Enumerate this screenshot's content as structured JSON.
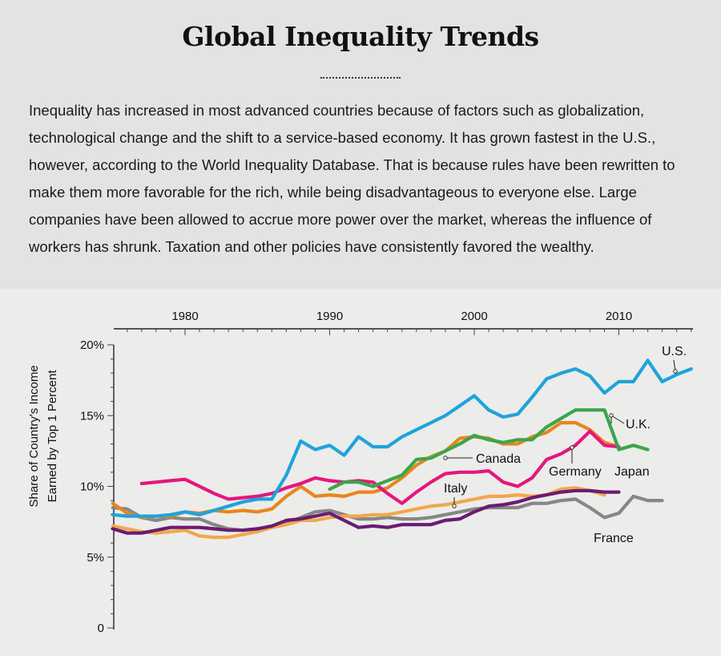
{
  "title": "Global Inequality Trends",
  "intro": "Inequality has increased in most advanced countries because of factors such as globalization, technological change and the shift to a service-based economy. It has grown fastest in the U.S., however, according to the World Inequality Database. That is because rules have been rewritten to make them more favorable for the rich, while being disadvantageous to everyone else. Large companies have been allowed to accrue more power over the market, whereas the influence of workers has shrunk. Taxation and other policies have consistently favored the wealthy.",
  "chart_data": {
    "type": "line",
    "title": "",
    "xlabel": "",
    "ylabel": "Share of Country's Income Earned by Top 1 Percent",
    "xlim": [
      1975,
      2016
    ],
    "ylim": [
      0,
      20
    ],
    "x_ticks": [
      1980,
      1990,
      2000,
      2010
    ],
    "y_ticks": [
      0,
      5,
      10,
      15,
      20
    ],
    "y_tick_labels": [
      "0",
      "5%",
      "10%",
      "15%",
      "20%"
    ],
    "x_axis_position": "top",
    "grid": false,
    "series": [
      {
        "name": "U.S.",
        "color": "#1fa3dc",
        "x": [
          1975,
          1976,
          1977,
          1978,
          1979,
          1980,
          1981,
          1982,
          1983,
          1984,
          1985,
          1986,
          1987,
          1988,
          1989,
          1990,
          1991,
          1992,
          1993,
          1994,
          1995,
          1996,
          1997,
          1998,
          1999,
          2000,
          2001,
          2002,
          2003,
          2004,
          2005,
          2006,
          2007,
          2008,
          2009,
          2010,
          2011,
          2012,
          2013,
          2014,
          2015
        ],
        "values": [
          8.0,
          7.9,
          7.9,
          7.9,
          8.0,
          8.2,
          8.0,
          8.3,
          8.6,
          8.9,
          9.1,
          9.1,
          10.8,
          13.2,
          12.6,
          12.9,
          12.2,
          13.5,
          12.8,
          12.8,
          13.5,
          14.0,
          14.5,
          15.0,
          15.7,
          16.4,
          15.4,
          14.9,
          15.1,
          16.3,
          17.6,
          18.0,
          18.3,
          17.8,
          16.6,
          17.4,
          17.4,
          18.9,
          17.4,
          17.9,
          18.3
        ],
        "label": "U.S."
      },
      {
        "name": "U.K.",
        "color": "#3aa54b",
        "x": [
          1990,
          1991,
          1992,
          1993,
          1994,
          1995,
          1996,
          1997,
          1998,
          1999,
          2000,
          2001,
          2002,
          2003,
          2004,
          2005,
          2006,
          2007,
          2008,
          2009,
          2010,
          2011,
          2012
        ],
        "values": [
          9.8,
          10.3,
          10.3,
          10.0,
          10.4,
          10.8,
          11.9,
          12.0,
          12.5,
          13.0,
          13.6,
          13.3,
          13.1,
          13.3,
          13.3,
          14.2,
          14.8,
          15.4,
          15.4,
          15.4,
          12.6,
          12.9,
          12.6
        ],
        "label": "U.K."
      },
      {
        "name": "Canada",
        "color": "#e8861e",
        "x": [
          1975,
          1976,
          1977,
          1978,
          1979,
          1980,
          1981,
          1982,
          1983,
          1984,
          1985,
          1986,
          1987,
          1988,
          1989,
          1990,
          1991,
          1992,
          1993,
          1994,
          1995,
          1996,
          1997,
          1998,
          1999,
          2000,
          2001,
          2002,
          2003,
          2004,
          2005,
          2006,
          2007,
          2008,
          2009,
          2010
        ],
        "values": [
          8.8,
          8.1,
          7.8,
          7.9,
          7.9,
          8.2,
          8.1,
          8.3,
          8.2,
          8.3,
          8.2,
          8.4,
          9.3,
          10.0,
          9.3,
          9.4,
          9.3,
          9.6,
          9.6,
          9.9,
          10.6,
          11.5,
          12.1,
          12.5,
          13.4,
          13.5,
          13.4,
          13.0,
          13.0,
          13.5,
          13.8,
          14.5,
          14.5,
          14.0,
          13.1,
          12.8
        ],
        "label": "Canada"
      },
      {
        "name": "Germany",
        "color": "#e5177e",
        "x": [
          1977,
          1978,
          1979,
          1980,
          1981,
          1982,
          1983,
          1984,
          1985,
          1986,
          1987,
          1988,
          1989,
          1990,
          1991,
          1992,
          1993,
          1994,
          1995,
          1996,
          1997,
          1998,
          1999,
          2000,
          2001,
          2002,
          2003,
          2004,
          2005,
          2006,
          2007,
          2008,
          2009,
          2010
        ],
        "values": [
          10.2,
          10.3,
          10.4,
          10.5,
          10.0,
          9.5,
          9.1,
          9.2,
          9.3,
          9.5,
          9.9,
          10.2,
          10.6,
          10.4,
          10.3,
          10.4,
          10.3,
          9.5,
          8.8,
          9.6,
          10.3,
          10.9,
          11.0,
          11.0,
          11.1,
          10.3,
          10.0,
          10.6,
          11.9,
          12.3,
          12.9,
          13.9,
          12.9,
          12.8
        ],
        "label": "Germany"
      },
      {
        "name": "Italy",
        "color": "#f1a84c",
        "x": [
          1975,
          1976,
          1977,
          1978,
          1979,
          1980,
          1981,
          1982,
          1983,
          1984,
          1985,
          1986,
          1987,
          1988,
          1989,
          1990,
          1991,
          1992,
          1993,
          1994,
          1995,
          1996,
          1997,
          1998,
          1999,
          2000,
          2001,
          2002,
          2003,
          2004,
          2005,
          2006,
          2007,
          2008,
          2009
        ],
        "values": [
          7.2,
          7.0,
          6.8,
          6.7,
          6.8,
          6.9,
          6.5,
          6.4,
          6.4,
          6.6,
          6.8,
          7.1,
          7.3,
          7.6,
          7.6,
          7.8,
          7.9,
          7.9,
          8.0,
          8.0,
          8.2,
          8.4,
          8.6,
          8.7,
          8.9,
          9.1,
          9.3,
          9.3,
          9.4,
          9.3,
          9.4,
          9.8,
          9.9,
          9.7,
          9.4
        ],
        "label": "Italy"
      },
      {
        "name": "Japan",
        "color": "#6b1b72",
        "x": [
          1975,
          1976,
          1977,
          1978,
          1979,
          1980,
          1981,
          1982,
          1983,
          1984,
          1985,
          1986,
          1987,
          1988,
          1989,
          1990,
          1991,
          1992,
          1993,
          1994,
          1995,
          1996,
          1997,
          1998,
          1999,
          2000,
          2001,
          2002,
          2003,
          2004,
          2005,
          2006,
          2007,
          2008,
          2009,
          2010
        ],
        "values": [
          7.0,
          6.7,
          6.7,
          6.9,
          7.1,
          7.1,
          7.1,
          7.0,
          6.9,
          6.9,
          7.0,
          7.2,
          7.6,
          7.7,
          7.9,
          8.1,
          7.6,
          7.1,
          7.2,
          7.1,
          7.3,
          7.3,
          7.3,
          7.6,
          7.7,
          8.2,
          8.6,
          8.7,
          8.9,
          9.2,
          9.4,
          9.6,
          9.7,
          9.7,
          9.6,
          9.6
        ],
        "label": "Japan"
      },
      {
        "name": "France",
        "color": "#878787",
        "x": [
          1975,
          1976,
          1977,
          1978,
          1979,
          1980,
          1981,
          1982,
          1983,
          1984,
          1985,
          1986,
          1987,
          1988,
          1989,
          1990,
          1991,
          1992,
          1993,
          1994,
          1995,
          1996,
          1997,
          1998,
          1999,
          2000,
          2001,
          2002,
          2003,
          2004,
          2005,
          2006,
          2007,
          2008,
          2009,
          2010,
          2011,
          2012,
          2013
        ],
        "values": [
          8.5,
          8.4,
          7.8,
          7.6,
          7.8,
          7.7,
          7.7,
          7.3,
          7.0,
          6.9,
          7.0,
          7.1,
          7.4,
          7.8,
          8.2,
          8.3,
          8.0,
          7.7,
          7.7,
          7.8,
          7.7,
          7.7,
          7.8,
          8.0,
          8.2,
          8.4,
          8.5,
          8.5,
          8.5,
          8.8,
          8.8,
          9.0,
          9.1,
          8.5,
          7.8,
          8.1,
          9.3,
          9.0,
          9.0
        ],
        "label": "France"
      }
    ],
    "annotations": [
      {
        "text": "U.S.",
        "series": "U.S."
      },
      {
        "text": "U.K.",
        "series": "U.K."
      },
      {
        "text": "Canada",
        "series": "Canada"
      },
      {
        "text": "Germany",
        "series": "Germany"
      },
      {
        "text": "Japan",
        "series": "Japan"
      },
      {
        "text": "Italy",
        "series": "Italy"
      },
      {
        "text": "France",
        "series": "France"
      }
    ]
  }
}
